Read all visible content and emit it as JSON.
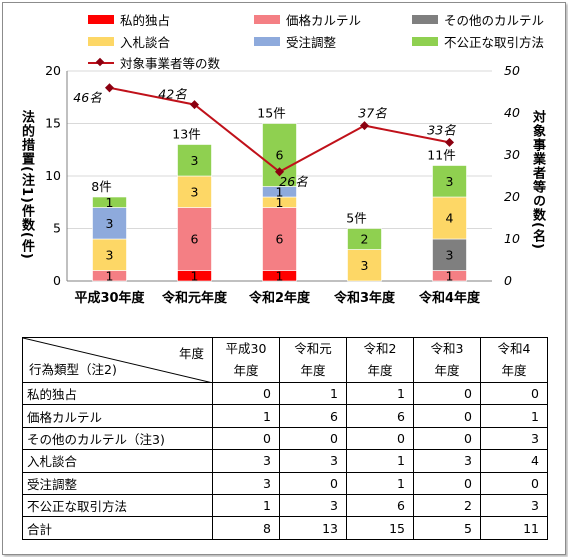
{
  "legend": {
    "private_monopoly": "私的独占",
    "price_cartel": "価格カルテル",
    "other_cartel": "その他のカルテル",
    "bid_rigging": "入札談合",
    "order_adjustment": "受注調整",
    "unfair_trade": "不公正な取引方法",
    "num_businesses": "対象事業者等の数"
  },
  "axes": {
    "left_title": "法的措置(注1)件数(件)",
    "right_title": "対象事業者等の数(名)"
  },
  "table": {
    "corner_top": "年度",
    "corner_bottom": "行為類型（注2)",
    "columns": [
      {
        "line1": "平成30",
        "line2": "年度"
      },
      {
        "line1": "令和元",
        "line2": "年度"
      },
      {
        "line1": "令和2",
        "line2": "年度"
      },
      {
        "line1": "令和3",
        "line2": "年度"
      },
      {
        "line1": "令和4",
        "line2": "年度"
      }
    ],
    "rows": [
      {
        "label": "私的独占",
        "values": [
          "0",
          "1",
          "1",
          "0",
          "0"
        ]
      },
      {
        "label": "価格カルテル",
        "values": [
          "1",
          "6",
          "6",
          "0",
          "1"
        ]
      },
      {
        "label": "その他のカルテル（注3)",
        "values": [
          "0",
          "0",
          "0",
          "0",
          "3"
        ]
      },
      {
        "label": "入札談合",
        "values": [
          "3",
          "3",
          "1",
          "3",
          "4"
        ]
      },
      {
        "label": "受注調整",
        "values": [
          "3",
          "0",
          "1",
          "0",
          "0"
        ]
      },
      {
        "label": "不公正な取引方法",
        "values": [
          "1",
          "3",
          "6",
          "2",
          "3"
        ]
      },
      {
        "label": "合計",
        "values": [
          "8",
          "13",
          "15",
          "5",
          "11"
        ]
      }
    ]
  },
  "chart_data": {
    "type": "bar",
    "stacked": true,
    "categories": [
      "平成30年度",
      "令和元年度",
      "令和2年度",
      "令和3年度",
      "令和4年度"
    ],
    "series": [
      {
        "name": "私的独占",
        "color": "#ff0000",
        "values": [
          0,
          1,
          1,
          0,
          0
        ]
      },
      {
        "name": "価格カルテル",
        "color": "#f47f84",
        "values": [
          1,
          6,
          6,
          0,
          1
        ]
      },
      {
        "name": "その他のカルテル",
        "color": "#7f7f7f",
        "values": [
          0,
          0,
          0,
          0,
          3
        ]
      },
      {
        "name": "入札談合",
        "color": "#fdd766",
        "values": [
          3,
          3,
          1,
          3,
          4
        ]
      },
      {
        "name": "受注調整",
        "color": "#8eaadc",
        "values": [
          3,
          0,
          1,
          0,
          0
        ]
      },
      {
        "name": "不公正な取引方法",
        "color": "#8fd050",
        "values": [
          1,
          3,
          6,
          2,
          3
        ]
      }
    ],
    "totals": [
      "8件",
      "13件",
      "15件",
      "5件",
      "11件"
    ],
    "line_series": {
      "name": "対象事業者等の数",
      "color": "#c0111a",
      "values": [
        46,
        42,
        26,
        37,
        33
      ],
      "labels": [
        "46名",
        "42名",
        "26名",
        "37名",
        "33名"
      ],
      "axis": "right"
    },
    "ylim": [
      0,
      20
    ],
    "yticks": [
      "0",
      "5",
      "10",
      "15",
      "20"
    ],
    "y2lim": [
      0,
      50
    ],
    "y2ticks": [
      "0",
      "10",
      "20",
      "30",
      "40",
      "50"
    ],
    "ylabel": "法的措置(注1)件数(件)",
    "y2label": "対象事業者等の数(名)",
    "grid": true,
    "legend_position": "top"
  }
}
